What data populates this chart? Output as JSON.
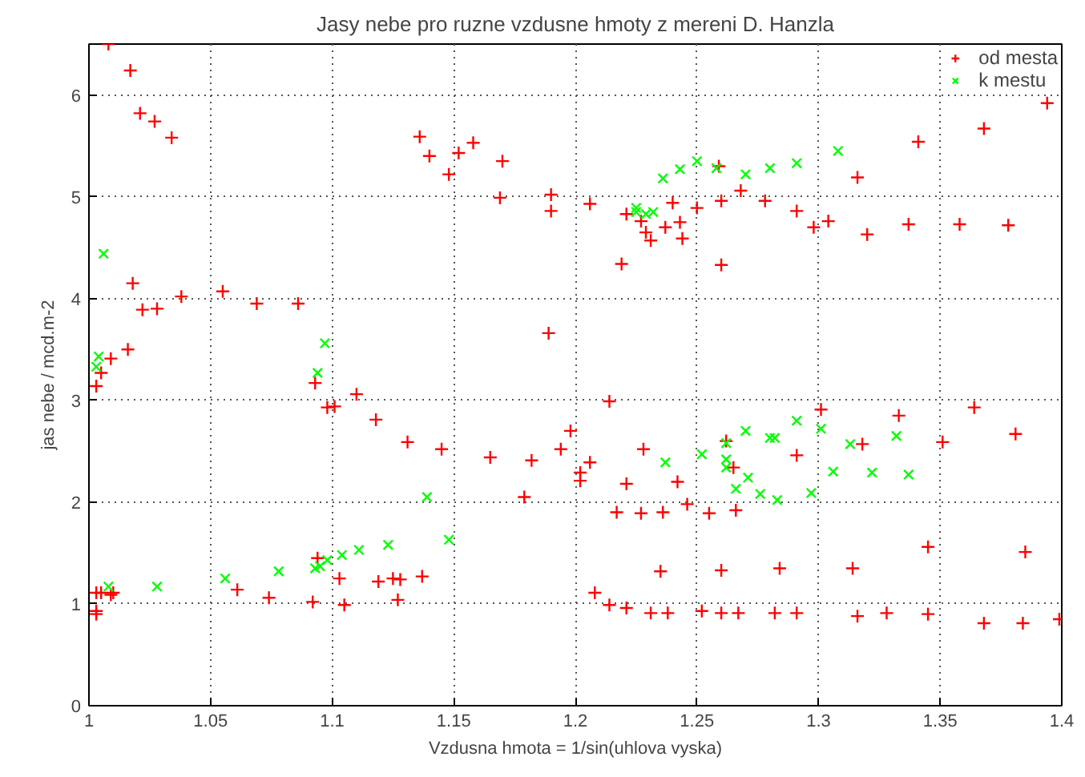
{
  "chart_data": {
    "type": "scatter",
    "title": "Jasy nebe pro ruzne vzdusne hmoty z mereni D. Hanzla",
    "xlabel": "Vzdusna hmota = 1/sin(uhlova vyska)",
    "ylabel": "jas nebe / mcd.m-2",
    "xlim": [
      1,
      1.4
    ],
    "ylim": [
      0,
      6.5
    ],
    "xticks": [
      1,
      1.05,
      1.1,
      1.15,
      1.2,
      1.25,
      1.3,
      1.35,
      1.4
    ],
    "yticks": [
      0,
      1,
      2,
      3,
      4,
      5,
      6
    ],
    "grid": true,
    "legend": "top right",
    "series": [
      {
        "name": "od mesta",
        "color": "#ff0000",
        "marker": "cross",
        "x": [
          1.008,
          1.017,
          1.021,
          1.027,
          1.034,
          1.018,
          1.022,
          1.028,
          1.038,
          1.055,
          1.069,
          1.086,
          1.016,
          1.009,
          1.005,
          1.093,
          1.003,
          1.003,
          1.003,
          1.003,
          1.005,
          1.009,
          1.01,
          1.061,
          1.074,
          1.092,
          1.094,
          1.105,
          1.103,
          1.125,
          1.119,
          1.128,
          1.127,
          1.098,
          1.101,
          1.11,
          1.118,
          1.131,
          1.136,
          1.14,
          1.152,
          1.158,
          1.148,
          1.17,
          1.169,
          1.19,
          1.19,
          1.189,
          1.206,
          1.221,
          1.227,
          1.229,
          1.231,
          1.219,
          1.237,
          1.24,
          1.243,
          1.244,
          1.25,
          1.259,
          1.26,
          1.26,
          1.268,
          1.278,
          1.291,
          1.298,
          1.304,
          1.316,
          1.32,
          1.337,
          1.341,
          1.358,
          1.368,
          1.378,
          1.394,
          1.145,
          1.165,
          1.179,
          1.182,
          1.194,
          1.198,
          1.202,
          1.202,
          1.206,
          1.214,
          1.217,
          1.221,
          1.227,
          1.228,
          1.236,
          1.242,
          1.246,
          1.255,
          1.262,
          1.26,
          1.235,
          1.208,
          1.214,
          1.221,
          1.231,
          1.238,
          1.252,
          1.26,
          1.267,
          1.266,
          1.137,
          1.265,
          1.291,
          1.301,
          1.318,
          1.333,
          1.351,
          1.364,
          1.381,
          1.345,
          1.385,
          1.284,
          1.314,
          1.282,
          1.291,
          1.316,
          1.328,
          1.345,
          1.368,
          1.384,
          1.399
        ],
        "values": [
          6.5,
          6.24,
          5.82,
          5.74,
          5.58,
          4.15,
          3.89,
          3.9,
          4.02,
          4.07,
          3.95,
          3.95,
          3.5,
          3.41,
          3.27,
          3.17,
          3.14,
          0.93,
          0.9,
          1.11,
          1.11,
          1.09,
          1.11,
          1.14,
          1.06,
          1.02,
          1.45,
          0.99,
          1.25,
          1.25,
          1.22,
          1.24,
          1.04,
          2.93,
          2.94,
          3.06,
          2.81,
          2.59,
          5.59,
          5.4,
          5.43,
          5.53,
          5.22,
          5.35,
          4.99,
          5.02,
          4.86,
          3.66,
          4.93,
          4.83,
          4.76,
          4.65,
          4.57,
          4.34,
          4.7,
          4.94,
          4.75,
          4.59,
          4.89,
          5.3,
          4.96,
          4.33,
          5.06,
          4.96,
          4.86,
          4.7,
          4.76,
          5.19,
          4.63,
          4.73,
          5.54,
          4.73,
          5.67,
          4.72,
          5.92,
          2.52,
          2.44,
          2.05,
          2.41,
          2.52,
          2.7,
          2.29,
          2.21,
          2.39,
          2.99,
          1.9,
          2.18,
          1.89,
          2.52,
          1.9,
          2.2,
          1.98,
          1.89,
          2.6,
          1.33,
          1.32,
          1.11,
          0.99,
          0.96,
          0.91,
          0.91,
          0.93,
          0.91,
          0.91,
          1.92,
          1.27,
          2.34,
          2.46,
          2.91,
          2.57,
          2.85,
          2.59,
          2.93,
          2.67,
          1.56,
          1.51,
          1.35,
          1.35,
          0.91,
          0.91,
          0.88,
          0.91,
          0.9,
          0.81,
          0.81,
          0.85
        ]
      },
      {
        "name": "k mestu",
        "color": "#00ff00",
        "marker": "x",
        "x": [
          1.006,
          1.004,
          1.003,
          1.097,
          1.094,
          1.008,
          1.028,
          1.056,
          1.078,
          1.093,
          1.095,
          1.098,
          1.104,
          1.111,
          1.123,
          1.236,
          1.243,
          1.25,
          1.258,
          1.225,
          1.225,
          1.229,
          1.232,
          1.27,
          1.28,
          1.291,
          1.308,
          1.139,
          1.148,
          1.237,
          1.252,
          1.262,
          1.262,
          1.262,
          1.266,
          1.27,
          1.28,
          1.282,
          1.291,
          1.301,
          1.271,
          1.276,
          1.283,
          1.297,
          1.306,
          1.313,
          1.322,
          1.332,
          1.337
        ],
        "values": [
          4.44,
          3.43,
          3.33,
          3.56,
          3.27,
          1.17,
          1.17,
          1.25,
          1.32,
          1.35,
          1.37,
          1.43,
          1.48,
          1.53,
          1.58,
          5.18,
          5.27,
          5.35,
          5.28,
          4.89,
          4.85,
          4.83,
          4.85,
          5.22,
          5.28,
          5.33,
          5.45,
          2.05,
          1.63,
          2.39,
          2.47,
          2.58,
          2.42,
          2.34,
          2.13,
          2.7,
          2.63,
          2.63,
          2.8,
          2.72,
          2.24,
          2.08,
          2.02,
          2.09,
          2.3,
          2.57,
          2.29,
          2.65,
          2.27
        ]
      }
    ]
  }
}
